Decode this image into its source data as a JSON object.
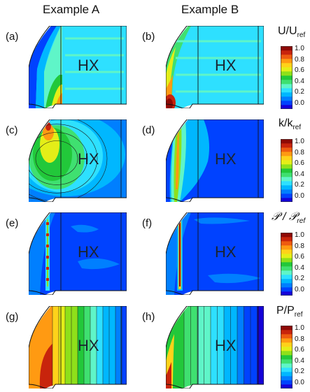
{
  "columns": [
    "Example A",
    "Example B"
  ],
  "hx_label": "HX",
  "panels": [
    {
      "id": "a",
      "label": "(a)",
      "example": "A",
      "quantity": "velocity"
    },
    {
      "id": "b",
      "label": "(b)",
      "example": "B",
      "quantity": "velocity"
    },
    {
      "id": "c",
      "label": "(c)",
      "example": "A",
      "quantity": "tke"
    },
    {
      "id": "d",
      "label": "(d)",
      "example": "B",
      "quantity": "tke"
    },
    {
      "id": "e",
      "label": "(e)",
      "example": "A",
      "quantity": "production"
    },
    {
      "id": "f",
      "label": "(f)",
      "example": "B",
      "quantity": "production"
    },
    {
      "id": "g",
      "label": "(g)",
      "example": "A",
      "quantity": "pressure"
    },
    {
      "id": "h",
      "label": "(h)",
      "example": "B",
      "quantity": "pressure"
    }
  ],
  "colorbars": [
    {
      "main": "U/U",
      "sub": "ref"
    },
    {
      "main": "k/k",
      "sub": "ref"
    },
    {
      "main": "𝒫 / 𝒫",
      "sub": "ref"
    },
    {
      "main": "P/P",
      "sub": "ref"
    }
  ],
  "tick_labels": [
    "1.0",
    "0.8",
    "0.6",
    "0.4",
    "0.2",
    "0.0"
  ],
  "colormap": [
    "#1500d8",
    "#0042ff",
    "#007fff",
    "#00b7ff",
    "#2ee0ff",
    "#5ff5c8",
    "#3fe070",
    "#22c83a",
    "#8fe01a",
    "#e4ee18",
    "#ffd21a",
    "#ff9a12",
    "#ee5b10",
    "#c8240c",
    "#8e0a06"
  ]
}
